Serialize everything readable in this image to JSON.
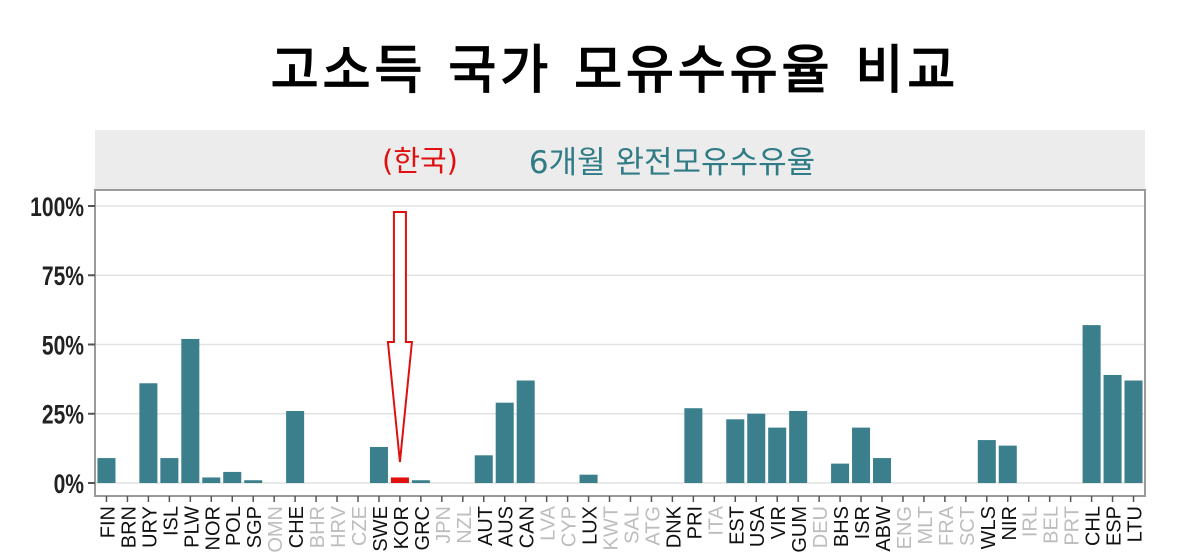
{
  "title": "고소득 국가 모유수유율 비교",
  "colors": {
    "bar": "#3b7f8c",
    "highlight": "#e01010",
    "subtitle_country": "#e01010",
    "subtitle_text": "#2f7b86",
    "panel_header": "#ececec",
    "arrow": "#e01010",
    "muted_label": "#bdbdbd"
  },
  "chart_data": {
    "type": "bar",
    "panel_title_prefix": "(한국)",
    "panel_title": "6개월 완전모유수유율",
    "xlabel": "",
    "ylabel": "",
    "ylim": [
      0,
      100
    ],
    "yticks": [
      "0%",
      "25%",
      "50%",
      "75%",
      "100%"
    ],
    "ytick_values": [
      0,
      25,
      50,
      75,
      100
    ],
    "grid": true,
    "highlight": "KOR",
    "annotation": "arrow pointing to KOR",
    "categories": [
      "FIN",
      "BRN",
      "URY",
      "ISL",
      "PLW",
      "NOR",
      "POL",
      "SGP",
      "OMN",
      "CHE",
      "BHR",
      "HRV",
      "CZE",
      "SWE",
      "KOR",
      "GRC",
      "JPN",
      "NZL",
      "AUT",
      "AUS",
      "CAN",
      "LVA",
      "CYP",
      "LUX",
      "KWT",
      "SAL",
      "ATG",
      "DNK",
      "PRI",
      "ITA",
      "EST",
      "USA",
      "VIR",
      "GUM",
      "DEU",
      "BHS",
      "ISR",
      "ABW",
      "ENG",
      "MLT",
      "FRA",
      "SCT",
      "WLS",
      "NIR",
      "IRL",
      "BEL",
      "PRT",
      "CHL",
      "ESP",
      "LTU"
    ],
    "values": [
      9,
      0,
      36,
      9,
      52,
      2,
      4,
      1,
      0,
      26,
      0,
      0,
      0,
      13,
      2,
      1,
      0,
      0,
      10,
      29,
      37,
      0,
      0,
      3,
      0,
      0,
      0,
      0,
      27,
      0,
      23,
      25,
      20,
      26,
      0,
      7,
      20,
      9,
      0,
      0,
      0,
      0,
      15.5,
      13.5,
      0,
      0,
      0,
      57,
      39,
      37
    ],
    "label_muted": [
      false,
      false,
      false,
      false,
      false,
      false,
      false,
      false,
      true,
      false,
      true,
      true,
      true,
      false,
      false,
      false,
      true,
      true,
      false,
      false,
      false,
      true,
      true,
      false,
      true,
      true,
      true,
      false,
      false,
      true,
      false,
      false,
      false,
      false,
      true,
      false,
      false,
      false,
      true,
      true,
      true,
      true,
      false,
      false,
      true,
      true,
      true,
      false,
      false,
      false
    ]
  }
}
